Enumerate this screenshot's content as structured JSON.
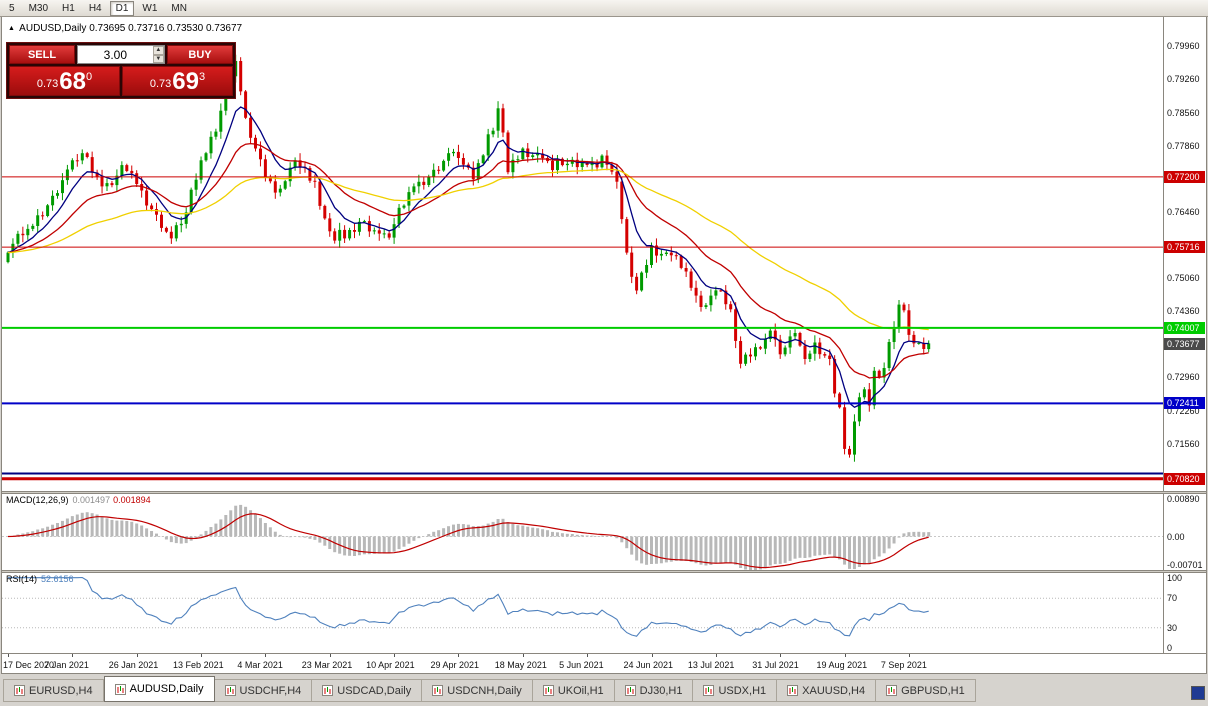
{
  "icons": {
    "expand": "▲",
    "spin_up": "▲",
    "spin_down": "▼"
  },
  "toolbar": {
    "timeframes": [
      {
        "label": "5",
        "active": false
      },
      {
        "label": "M30",
        "active": false
      },
      {
        "label": "H1",
        "active": false
      },
      {
        "label": "H4",
        "active": false
      },
      {
        "label": "D1",
        "active": true
      },
      {
        "label": "W1",
        "active": false
      },
      {
        "label": "MN",
        "active": false
      }
    ]
  },
  "header": {
    "symbol": "AUDUSD,Daily",
    "ohlc": "0.73695 0.73716 0.73530 0.73677"
  },
  "one_click": {
    "sell_label": "SELL",
    "buy_label": "BUY",
    "lot": "3.00",
    "bid_prefix": "0.73",
    "bid_big": "68",
    "bid_sup": "0",
    "ask_prefix": "0.73",
    "ask_big": "69",
    "ask_sup": "3"
  },
  "chart_data": {
    "type": "candlestick",
    "title": "AUDUSD,Daily",
    "x_dates": [
      "17 Dec 2020",
      "7 Jan 2021",
      "26 Jan 2021",
      "13 Feb 2021",
      "4 Mar 2021",
      "23 Mar 2021",
      "10 Apr 2021",
      "29 Apr 2021",
      "18 May 2021",
      "5 Jun 2021",
      "24 Jun 2021",
      "13 Jul 2021",
      "31 Jul 2021",
      "19 Aug 2021",
      "7 Sep 2021"
    ],
    "x_tick_step": 13,
    "price_axis": {
      "min": 0.7056,
      "max": 0.8058,
      "ticks": [
        "0.79960",
        "0.79260",
        "0.78560",
        "0.77860",
        "0.77160",
        "0.76460",
        "0.75760",
        "0.75060",
        "0.74360",
        "0.73660",
        "0.72960",
        "0.72260",
        "0.71560",
        "0.70860"
      ]
    },
    "candles": {
      "count": 187,
      "jitter": 0.0024,
      "wick": 0.0014,
      "up_color": "#009a00",
      "down_color": "#d40000",
      "anchors": [
        [
          0,
          0.756
        ],
        [
          4,
          0.761
        ],
        [
          9,
          0.768
        ],
        [
          13,
          0.7755
        ],
        [
          15,
          0.777
        ],
        [
          19,
          0.77
        ],
        [
          23,
          0.7745
        ],
        [
          26,
          0.7705
        ],
        [
          30,
          0.764
        ],
        [
          33,
          0.759
        ],
        [
          36,
          0.7645
        ],
        [
          39,
          0.7755
        ],
        [
          43,
          0.786
        ],
        [
          46,
          0.7965
        ],
        [
          48,
          0.7845
        ],
        [
          52,
          0.772
        ],
        [
          55,
          0.7695
        ],
        [
          58,
          0.7755
        ],
        [
          62,
          0.771
        ],
        [
          65,
          0.7605
        ],
        [
          68,
          0.759
        ],
        [
          71,
          0.7625
        ],
        [
          75,
          0.76
        ],
        [
          78,
          0.762
        ],
        [
          82,
          0.77
        ],
        [
          86,
          0.7735
        ],
        [
          89,
          0.777
        ],
        [
          91,
          0.776
        ],
        [
          94,
          0.7715
        ],
        [
          97,
          0.781
        ],
        [
          99,
          0.7865
        ],
        [
          101,
          0.773
        ],
        [
          104,
          0.778
        ],
        [
          108,
          0.776
        ],
        [
          112,
          0.7745
        ],
        [
          117,
          0.7745
        ],
        [
          120,
          0.7765
        ],
        [
          123,
          0.771
        ],
        [
          125,
          0.756
        ],
        [
          127,
          0.748
        ],
        [
          130,
          0.7575
        ],
        [
          133,
          0.756
        ],
        [
          137,
          0.752
        ],
        [
          140,
          0.7445
        ],
        [
          143,
          0.748
        ],
        [
          146,
          0.744
        ],
        [
          148,
          0.7325
        ],
        [
          151,
          0.736
        ],
        [
          154,
          0.7395
        ],
        [
          156,
          0.7345
        ],
        [
          159,
          0.739
        ],
        [
          161,
          0.7335
        ],
        [
          163,
          0.737
        ],
        [
          166,
          0.7335
        ],
        [
          167,
          0.7262
        ],
        [
          168,
          0.7233
        ],
        [
          169,
          0.7145
        ],
        [
          170,
          0.7133
        ],
        [
          171,
          0.7203
        ],
        [
          172,
          0.7254
        ],
        [
          173,
          0.7271
        ],
        [
          174,
          0.7237
        ],
        [
          175,
          0.731
        ],
        [
          176,
          0.7296
        ],
        [
          177,
          0.7316
        ],
        [
          178,
          0.7371
        ],
        [
          179,
          0.74
        ],
        [
          180,
          0.745
        ],
        [
          181,
          0.7438
        ],
        [
          182,
          0.7386
        ],
        [
          183,
          0.7368
        ],
        [
          184,
          0.7369
        ],
        [
          185,
          0.7356
        ],
        [
          186,
          0.7368
        ]
      ]
    },
    "moving_averages": [
      {
        "period": 8,
        "color": "#000080"
      },
      {
        "period": 21,
        "color": "#c00000"
      },
      {
        "period": 55,
        "color": "#f0d000"
      }
    ],
    "hlines": [
      {
        "price": 0.772,
        "label": "0.77200",
        "color": "#cc0000",
        "width": 1
      },
      {
        "price": 0.75716,
        "label": "0.75716",
        "color": "#cc0000",
        "width": 1
      },
      {
        "price": 0.74007,
        "label": "0.74007",
        "color": "#00cc00",
        "width": 2
      },
      {
        "price": 0.72411,
        "label": "0.72411",
        "color": "#0000c8",
        "width": 2
      },
      {
        "price": 0.7093,
        "label": null,
        "color": "#000080",
        "width": 2
      },
      {
        "price": 0.7082,
        "label": "0.70820",
        "color": "#cc0000",
        "width": 3
      }
    ],
    "current_price": {
      "value": 0.73677,
      "label": "0.73677",
      "color": "#4a4a4a"
    },
    "macd": {
      "label": "MACD(12,26,9)",
      "value_main": "0.001497",
      "value_signal": "0.001894",
      "fast": 12,
      "slow": 26,
      "signal": 9,
      "hist_color": "#b8b8b8",
      "signal_color": "#c00000",
      "axis": {
        "min": -0.00701,
        "max": 0.0089,
        "ticks": [
          {
            "v": 0.0089,
            "t": "0.00890"
          },
          {
            "v": 0,
            "t": "0.00"
          },
          {
            "v": -0.00701,
            "t": "-0.00701"
          }
        ]
      }
    },
    "rsi": {
      "label": "RSI(14)",
      "value": "52.6156",
      "period": 14,
      "color": "#4f81bd",
      "levels": [
        {
          "v": 100,
          "t": "100"
        },
        {
          "v": 70,
          "t": "70"
        },
        {
          "v": 30,
          "t": "30"
        },
        {
          "v": 0,
          "t": "0"
        }
      ]
    }
  },
  "tabs": [
    {
      "label": "EURUSD,H4",
      "active": false
    },
    {
      "label": "AUDUSD,Daily",
      "active": true
    },
    {
      "label": "USDCHF,H4",
      "active": false
    },
    {
      "label": "USDCAD,Daily",
      "active": false
    },
    {
      "label": "USDCNH,Daily",
      "active": false
    },
    {
      "label": "UKOil,H1",
      "active": false
    },
    {
      "label": "DJ30,H1",
      "active": false
    },
    {
      "label": "USDX,H1",
      "active": false
    },
    {
      "label": "XAUUSD,H4",
      "active": false
    },
    {
      "label": "GBPUSD,H1",
      "active": false
    }
  ]
}
